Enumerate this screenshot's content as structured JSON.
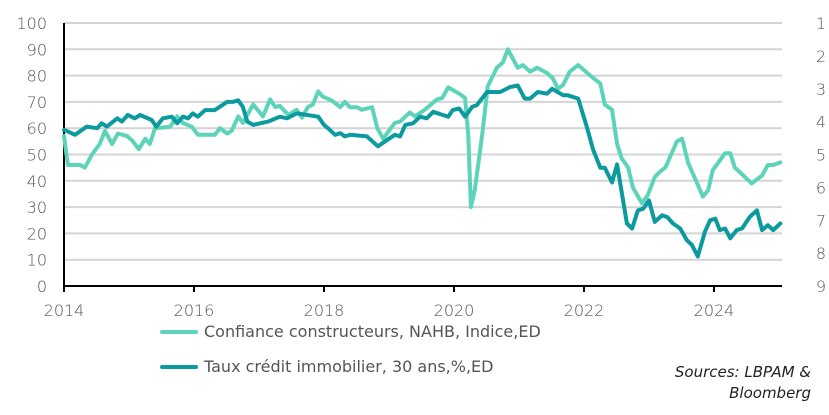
{
  "chart_data": {
    "type": "line",
    "xlim": [
      2014,
      2025.1
    ],
    "x_ticks": [
      "2014",
      "2016",
      "2018",
      "2020",
      "2022",
      "2024"
    ],
    "ylim_left": [
      0,
      100
    ],
    "y_ticks_left": [
      "0",
      "10",
      "20",
      "30",
      "40",
      "50",
      "60",
      "70",
      "80",
      "90",
      "100"
    ],
    "ylim_right": [
      9,
      1
    ],
    "y_ticks_right": [
      "1",
      "2",
      "3",
      "4",
      "5",
      "6",
      "7",
      "8",
      "9"
    ],
    "right_axis_inverted": true,
    "grid": true,
    "legend_placement": "bottom",
    "series": [
      {
        "name": "Confiance constructeurs,  NAHB, Indice,ED",
        "axis": "left",
        "color": "#5dd4b9",
        "points": [
          [
            2014.0,
            57
          ],
          [
            2014.06,
            46
          ],
          [
            2014.25,
            46
          ],
          [
            2014.32,
            45
          ],
          [
            2014.43,
            50
          ],
          [
            2014.55,
            54
          ],
          [
            2014.63,
            59
          ],
          [
            2014.74,
            54
          ],
          [
            2014.83,
            58
          ],
          [
            2014.97,
            57
          ],
          [
            2015.06,
            55
          ],
          [
            2015.15,
            52
          ],
          [
            2015.25,
            56
          ],
          [
            2015.32,
            54
          ],
          [
            2015.4,
            60
          ],
          [
            2015.63,
            60.5
          ],
          [
            2015.74,
            64.5
          ],
          [
            2015.83,
            62
          ],
          [
            2015.97,
            60.5
          ],
          [
            2016.06,
            57.5
          ],
          [
            2016.32,
            57.5
          ],
          [
            2016.4,
            60
          ],
          [
            2016.51,
            58
          ],
          [
            2016.58,
            59
          ],
          [
            2016.68,
            64.5
          ],
          [
            2016.75,
            62
          ],
          [
            2016.91,
            69
          ],
          [
            2017.06,
            64.5
          ],
          [
            2017.17,
            71
          ],
          [
            2017.25,
            68
          ],
          [
            2017.32,
            68.5
          ],
          [
            2017.45,
            65
          ],
          [
            2017.58,
            67
          ],
          [
            2017.66,
            64
          ],
          [
            2017.75,
            68
          ],
          [
            2017.83,
            69
          ],
          [
            2017.91,
            74
          ],
          [
            2017.98,
            72
          ],
          [
            2018.12,
            70.5
          ],
          [
            2018.25,
            68
          ],
          [
            2018.32,
            70
          ],
          [
            2018.4,
            68
          ],
          [
            2018.51,
            68
          ],
          [
            2018.58,
            67
          ],
          [
            2018.74,
            68
          ],
          [
            2018.82,
            60
          ],
          [
            2018.91,
            56
          ],
          [
            2019.09,
            62
          ],
          [
            2019.17,
            62.5
          ],
          [
            2019.32,
            66
          ],
          [
            2019.4,
            64.5
          ],
          [
            2019.55,
            67
          ],
          [
            2019.74,
            71
          ],
          [
            2019.82,
            71.5
          ],
          [
            2019.91,
            75.5
          ],
          [
            2020.09,
            73
          ],
          [
            2020.17,
            71.5
          ],
          [
            2020.22,
            57
          ],
          [
            2020.26,
            30
          ],
          [
            2020.32,
            36.5
          ],
          [
            2020.43,
            57
          ],
          [
            2020.52,
            76
          ],
          [
            2020.66,
            83
          ],
          [
            2020.75,
            85
          ],
          [
            2020.83,
            90
          ],
          [
            2020.98,
            83
          ],
          [
            2021.06,
            84
          ],
          [
            2021.17,
            81.5
          ],
          [
            2021.28,
            83
          ],
          [
            2021.43,
            81
          ],
          [
            2021.52,
            79
          ],
          [
            2021.6,
            75
          ],
          [
            2021.68,
            76.5
          ],
          [
            2021.78,
            81.5
          ],
          [
            2021.91,
            84
          ],
          [
            2022.12,
            79.5
          ],
          [
            2022.25,
            77
          ],
          [
            2022.32,
            69
          ],
          [
            2022.43,
            67
          ],
          [
            2022.51,
            54
          ],
          [
            2022.58,
            48.5
          ],
          [
            2022.68,
            45
          ],
          [
            2022.75,
            37.5
          ],
          [
            2022.89,
            31.5
          ],
          [
            2022.98,
            34.5
          ],
          [
            2023.09,
            41.5
          ],
          [
            2023.17,
            43.5
          ],
          [
            2023.25,
            45
          ],
          [
            2023.43,
            55
          ],
          [
            2023.51,
            56
          ],
          [
            2023.6,
            47
          ],
          [
            2023.83,
            34
          ],
          [
            2023.91,
            36.5
          ],
          [
            2023.98,
            44
          ],
          [
            2024.17,
            50.5
          ],
          [
            2024.25,
            50.5
          ],
          [
            2024.32,
            45
          ],
          [
            2024.45,
            42
          ],
          [
            2024.58,
            39
          ],
          [
            2024.74,
            42
          ],
          [
            2024.83,
            46
          ],
          [
            2024.91,
            46
          ],
          [
            2025.02,
            47
          ]
        ]
      },
      {
        "name": "Taux  crédit immobilier, 30 ans,%,ED",
        "axis": "right",
        "color": "#0b9a9d",
        "points": [
          [
            2014.0,
            4.25
          ],
          [
            2014.17,
            4.4
          ],
          [
            2014.35,
            4.15
          ],
          [
            2014.51,
            4.2
          ],
          [
            2014.58,
            4.05
          ],
          [
            2014.66,
            4.15
          ],
          [
            2014.82,
            3.9
          ],
          [
            2014.89,
            4.0
          ],
          [
            2014.98,
            3.8
          ],
          [
            2015.09,
            3.9
          ],
          [
            2015.17,
            3.8
          ],
          [
            2015.35,
            3.95
          ],
          [
            2015.42,
            4.15
          ],
          [
            2015.52,
            3.9
          ],
          [
            2015.66,
            3.85
          ],
          [
            2015.74,
            4.05
          ],
          [
            2015.83,
            3.85
          ],
          [
            2015.91,
            3.9
          ],
          [
            2015.98,
            3.75
          ],
          [
            2016.06,
            3.85
          ],
          [
            2016.17,
            3.65
          ],
          [
            2016.32,
            3.65
          ],
          [
            2016.51,
            3.4
          ],
          [
            2016.6,
            3.4
          ],
          [
            2016.68,
            3.35
          ],
          [
            2016.75,
            3.55
          ],
          [
            2016.82,
            4.0
          ],
          [
            2016.91,
            4.1
          ],
          [
            2017.14,
            4.0
          ],
          [
            2017.32,
            3.85
          ],
          [
            2017.43,
            3.9
          ],
          [
            2017.58,
            3.75
          ],
          [
            2017.91,
            3.85
          ],
          [
            2018.0,
            4.1
          ],
          [
            2018.06,
            4.2
          ],
          [
            2018.17,
            4.4
          ],
          [
            2018.25,
            4.35
          ],
          [
            2018.32,
            4.45
          ],
          [
            2018.4,
            4.4
          ],
          [
            2018.66,
            4.45
          ],
          [
            2018.83,
            4.75
          ],
          [
            2019.09,
            4.4
          ],
          [
            2019.17,
            4.45
          ],
          [
            2019.25,
            4.1
          ],
          [
            2019.37,
            4.05
          ],
          [
            2019.48,
            3.85
          ],
          [
            2019.58,
            3.9
          ],
          [
            2019.68,
            3.7
          ],
          [
            2019.83,
            3.8
          ],
          [
            2019.91,
            3.85
          ],
          [
            2019.98,
            3.65
          ],
          [
            2020.08,
            3.6
          ],
          [
            2020.17,
            3.85
          ],
          [
            2020.28,
            3.55
          ],
          [
            2020.35,
            3.5
          ],
          [
            2020.51,
            3.1
          ],
          [
            2020.71,
            3.1
          ],
          [
            2020.86,
            2.95
          ],
          [
            2020.98,
            2.9
          ],
          [
            2021.09,
            3.3
          ],
          [
            2021.17,
            3.3
          ],
          [
            2021.29,
            3.1
          ],
          [
            2021.43,
            3.15
          ],
          [
            2021.51,
            3.0
          ],
          [
            2021.68,
            3.2
          ],
          [
            2021.75,
            3.2
          ],
          [
            2021.91,
            3.3
          ],
          [
            2022.05,
            4.2
          ],
          [
            2022.14,
            4.85
          ],
          [
            2022.25,
            5.4
          ],
          [
            2022.32,
            5.4
          ],
          [
            2022.43,
            5.85
          ],
          [
            2022.51,
            5.3
          ],
          [
            2022.66,
            7.1
          ],
          [
            2022.74,
            7.25
          ],
          [
            2022.83,
            6.7
          ],
          [
            2022.91,
            6.65
          ],
          [
            2023.0,
            6.4
          ],
          [
            2023.09,
            7.05
          ],
          [
            2023.2,
            6.85
          ],
          [
            2023.28,
            6.9
          ],
          [
            2023.37,
            7.1
          ],
          [
            2023.48,
            7.25
          ],
          [
            2023.58,
            7.6
          ],
          [
            2023.66,
            7.75
          ],
          [
            2023.75,
            8.1
          ],
          [
            2023.86,
            7.35
          ],
          [
            2023.94,
            7.0
          ],
          [
            2024.02,
            6.95
          ],
          [
            2024.09,
            7.3
          ],
          [
            2024.17,
            7.25
          ],
          [
            2024.25,
            7.55
          ],
          [
            2024.35,
            7.3
          ],
          [
            2024.43,
            7.25
          ],
          [
            2024.55,
            6.9
          ],
          [
            2024.66,
            6.7
          ],
          [
            2024.74,
            7.3
          ],
          [
            2024.83,
            7.15
          ],
          [
            2024.91,
            7.3
          ],
          [
            2025.02,
            7.1
          ]
        ]
      }
    ],
    "source": [
      "Sources: LBPAM &",
      "Bloomberg"
    ]
  }
}
